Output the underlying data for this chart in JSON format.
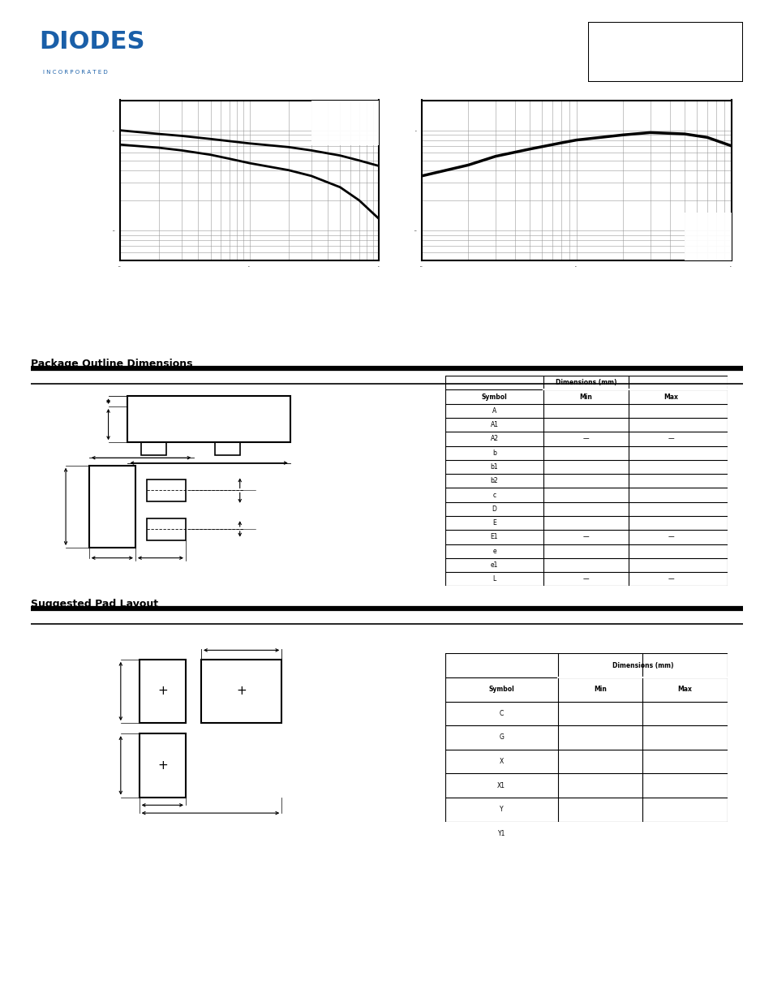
{
  "page_bg": "#ffffff",
  "logo_color": "#1a5fa8",
  "header_box_color": "#000000",
  "graph1": {
    "x": [
      0.1,
      0.2,
      0.3,
      0.5,
      0.7,
      1.0,
      2.0,
      3.0,
      5.0,
      7.0,
      10.0
    ],
    "curve1": [
      1.0,
      0.92,
      0.88,
      0.82,
      0.78,
      0.74,
      0.68,
      0.63,
      0.56,
      0.5,
      0.44
    ],
    "curve2": [
      0.72,
      0.67,
      0.63,
      0.57,
      0.52,
      0.47,
      0.4,
      0.35,
      0.27,
      0.2,
      0.13
    ]
  },
  "graph2": {
    "x": [
      0.1,
      0.2,
      0.3,
      0.5,
      0.8,
      1.0,
      2.0,
      3.0,
      5.0,
      7.0,
      10.0
    ],
    "curve1": [
      0.35,
      0.45,
      0.55,
      0.65,
      0.75,
      0.8,
      0.9,
      0.95,
      0.92,
      0.85,
      0.7
    ]
  },
  "section1_title": "Package Outline Dimensions",
  "section2_title": "Suggested Pad Layout",
  "table1_symbol_labels": [
    "A",
    "A1",
    "A2",
    "b",
    "b1",
    "b2",
    "c",
    "D",
    "E",
    "E1",
    "e",
    "e1",
    "L"
  ],
  "table1_dash_indices": [
    2,
    9,
    12
  ],
  "table2_symbol_labels": [
    "C",
    "G",
    "X",
    "X1",
    "Y",
    "Y1"
  ],
  "divider_color": "#000000",
  "grid_color": "#999999",
  "curve_color": "#000000",
  "table_border_color": "#000000"
}
